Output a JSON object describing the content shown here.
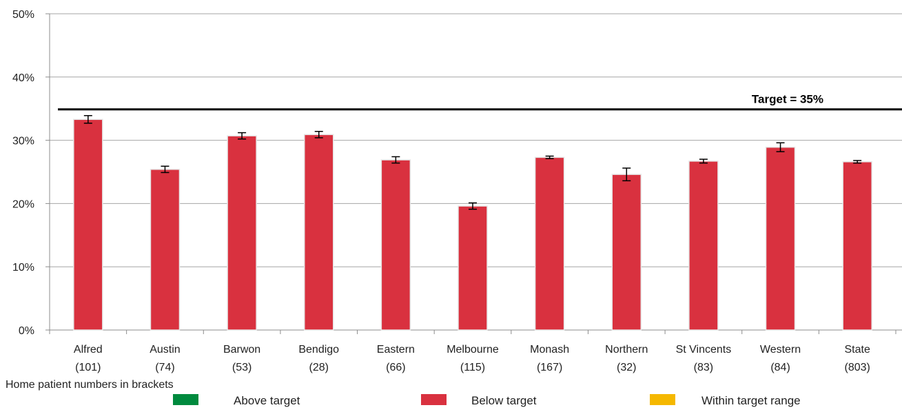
{
  "chart_data": {
    "type": "bar",
    "categories": [
      [
        "Alfred",
        "(101)"
      ],
      [
        "Austin",
        "(74)"
      ],
      [
        "Barwon",
        "(53)"
      ],
      [
        "Bendigo",
        "(28)"
      ],
      [
        "Eastern",
        "(66)"
      ],
      [
        "Melbourne",
        "(115)"
      ],
      [
        "Monash",
        "(167)"
      ],
      [
        "Northern",
        "(32)"
      ],
      [
        "St Vincents",
        "(83)"
      ],
      [
        "Western",
        "(84)"
      ],
      [
        "State",
        "(803)"
      ]
    ],
    "values": [
      33.3,
      25.4,
      30.7,
      30.9,
      26.9,
      19.6,
      27.3,
      24.6,
      26.7,
      28.9,
      26.6
    ],
    "errors": [
      [
        32.7,
        33.9
      ],
      [
        24.9,
        25.9
      ],
      [
        30.2,
        31.2
      ],
      [
        30.4,
        31.4
      ],
      [
        26.4,
        27.4
      ],
      [
        19.1,
        20.1
      ],
      [
        27.1,
        27.5
      ],
      [
        23.6,
        25.6
      ],
      [
        26.4,
        27.0
      ],
      [
        28.2,
        29.6
      ],
      [
        26.4,
        26.8
      ]
    ],
    "bar_color": "#d9313f",
    "ylim": [
      0,
      50
    ],
    "yticks": [
      "0%",
      "10%",
      "20%",
      "30%",
      "40%",
      "50%"
    ],
    "grid": true,
    "target": {
      "value": 35,
      "label": "Target  = 35%"
    },
    "note": "Home patient numbers in brackets",
    "legend": [
      {
        "label": "Above target",
        "color": "#008a3e"
      },
      {
        "label": "Below target",
        "color": "#d9313f"
      },
      {
        "label": "Within target range",
        "color": "#f5b800"
      }
    ]
  }
}
